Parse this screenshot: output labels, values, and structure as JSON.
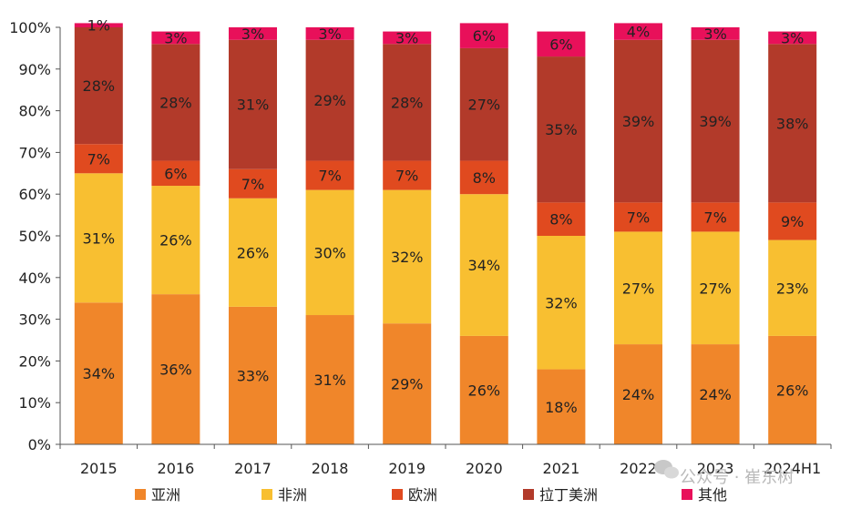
{
  "chart_data": {
    "type": "bar",
    "stacked": true,
    "percent": true,
    "categories": [
      "2015",
      "2016",
      "2017",
      "2018",
      "2019",
      "2020",
      "2021",
      "2022",
      "2023",
      "2024H1"
    ],
    "series": [
      {
        "name": "亚洲",
        "color": "#f0862a",
        "values": [
          34,
          36,
          33,
          31,
          29,
          26,
          18,
          24,
          24,
          26
        ]
      },
      {
        "name": "非洲",
        "color": "#f8bf31",
        "values": [
          31,
          26,
          26,
          30,
          32,
          34,
          32,
          27,
          27,
          23
        ]
      },
      {
        "name": "欧洲",
        "color": "#e04a1f",
        "values": [
          7,
          6,
          7,
          7,
          7,
          8,
          8,
          7,
          7,
          9
        ]
      },
      {
        "name": "拉丁美洲",
        "color": "#b23a2a",
        "values": [
          28,
          28,
          31,
          29,
          28,
          27,
          35,
          39,
          39,
          38
        ]
      },
      {
        "name": "其他",
        "color": "#e8105a",
        "values": [
          1,
          3,
          3,
          3,
          3,
          6,
          6,
          4,
          3,
          3
        ]
      }
    ],
    "ylim": [
      0,
      100
    ],
    "yticks": [
      "0%",
      "10%",
      "20%",
      "30%",
      "40%",
      "50%",
      "60%",
      "70%",
      "80%",
      "90%",
      "100%"
    ],
    "legend_position": "bottom",
    "grid": false
  },
  "watermark": "公众号 · 崔东树"
}
